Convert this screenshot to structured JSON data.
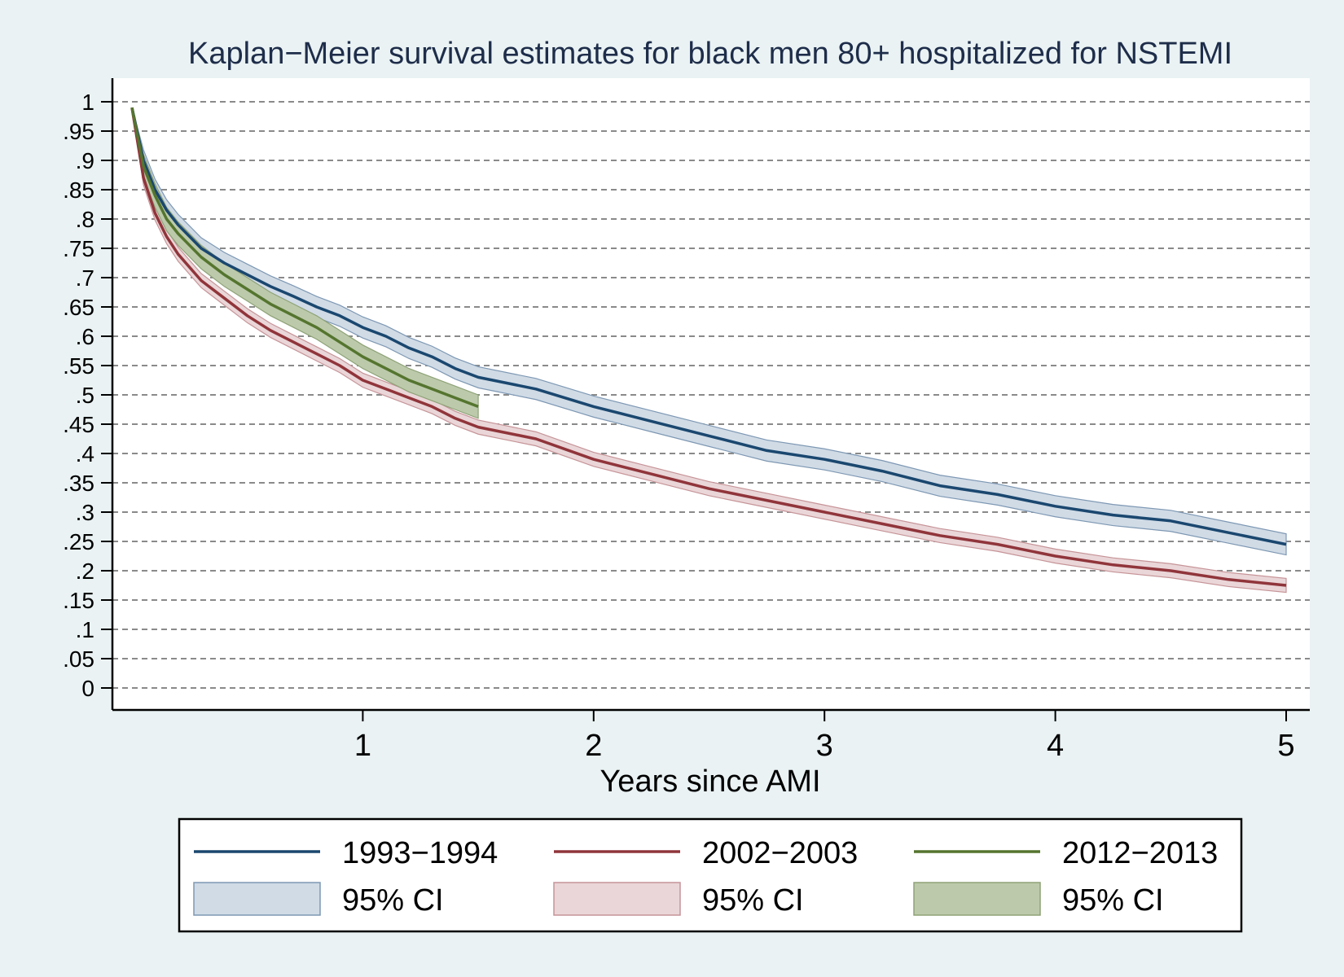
{
  "chart_data": {
    "type": "line",
    "title": "Kaplan−Meier survival estimates for black men 80+ hospitalized for NSTEMI",
    "xlabel": "Years since AMI",
    "ylabel": "",
    "xlim": [
      0,
      5
    ],
    "ylim": [
      0,
      1
    ],
    "x_ticks": [
      1,
      2,
      3,
      4,
      5
    ],
    "x_tick_labels": [
      "1",
      "2",
      "3",
      "4",
      "5"
    ],
    "y_ticks": [
      1,
      0.95,
      0.9,
      0.85,
      0.8,
      0.75,
      0.7,
      0.65,
      0.6,
      0.55,
      0.5,
      0.45,
      0.4,
      0.35,
      0.3,
      0.25,
      0.2,
      0.15,
      0.1,
      0.05,
      0
    ],
    "y_tick_labels": [
      "1",
      ".95",
      ".9",
      ".85",
      ".8",
      ".75",
      ".7",
      ".65",
      ".6",
      ".55",
      ".5",
      ".45",
      ".4",
      ".35",
      ".3",
      ".25",
      ".2",
      ".15",
      ".1",
      ".05",
      "0"
    ],
    "grid": "horizontal dashed",
    "legend_position": "bottom",
    "series": [
      {
        "name": "1993−1994",
        "ci_label": "95% CI",
        "color": "#1a476f",
        "ci_color": "#d0dbe6",
        "ci_edge": "#7e98b3",
        "x": [
          0,
          0.05,
          0.1,
          0.15,
          0.2,
          0.3,
          0.4,
          0.5,
          0.6,
          0.7,
          0.8,
          0.9,
          1.0,
          1.1,
          1.2,
          1.3,
          1.4,
          1.5,
          1.75,
          2.0,
          2.25,
          2.5,
          2.75,
          3.0,
          3.25,
          3.5,
          3.75,
          4.0,
          4.25,
          4.5,
          4.75,
          5.0
        ],
        "y": [
          0.99,
          0.9,
          0.85,
          0.815,
          0.79,
          0.75,
          0.725,
          0.705,
          0.685,
          0.668,
          0.65,
          0.635,
          0.615,
          0.6,
          0.58,
          0.565,
          0.545,
          0.53,
          0.51,
          0.48,
          0.455,
          0.43,
          0.405,
          0.39,
          0.37,
          0.345,
          0.33,
          0.31,
          0.295,
          0.285,
          0.265,
          0.245
        ],
        "ci_halfwidth": 0.018
      },
      {
        "name": "2002−2003",
        "ci_label": "95% CI",
        "color": "#90353b",
        "ci_color": "#ead6d8",
        "ci_edge": "#c69498",
        "x": [
          0,
          0.05,
          0.1,
          0.15,
          0.2,
          0.3,
          0.4,
          0.5,
          0.6,
          0.7,
          0.8,
          0.9,
          1.0,
          1.1,
          1.2,
          1.3,
          1.4,
          1.5,
          1.75,
          2.0,
          2.25,
          2.5,
          2.75,
          3.0,
          3.25,
          3.5,
          3.75,
          4.0,
          4.25,
          4.5,
          4.75,
          5.0
        ],
        "y": [
          0.99,
          0.87,
          0.81,
          0.77,
          0.74,
          0.695,
          0.665,
          0.635,
          0.61,
          0.59,
          0.57,
          0.55,
          0.525,
          0.51,
          0.495,
          0.48,
          0.46,
          0.445,
          0.425,
          0.39,
          0.365,
          0.34,
          0.32,
          0.3,
          0.28,
          0.26,
          0.245,
          0.225,
          0.21,
          0.2,
          0.185,
          0.175
        ],
        "ci_halfwidth": 0.012
      },
      {
        "name": "2012−2013",
        "ci_label": "95% CI",
        "color": "#55752f",
        "ci_color": "#bccaab",
        "ci_edge": "#8ea277",
        "x": [
          0,
          0.05,
          0.1,
          0.15,
          0.2,
          0.3,
          0.4,
          0.5,
          0.6,
          0.7,
          0.8,
          0.9,
          1.0,
          1.1,
          1.2,
          1.3,
          1.4,
          1.5
        ],
        "y": [
          0.99,
          0.89,
          0.84,
          0.8,
          0.775,
          0.735,
          0.705,
          0.68,
          0.655,
          0.635,
          0.615,
          0.59,
          0.565,
          0.545,
          0.525,
          0.51,
          0.495,
          0.48
        ],
        "ci_halfwidth": 0.02
      }
    ]
  }
}
